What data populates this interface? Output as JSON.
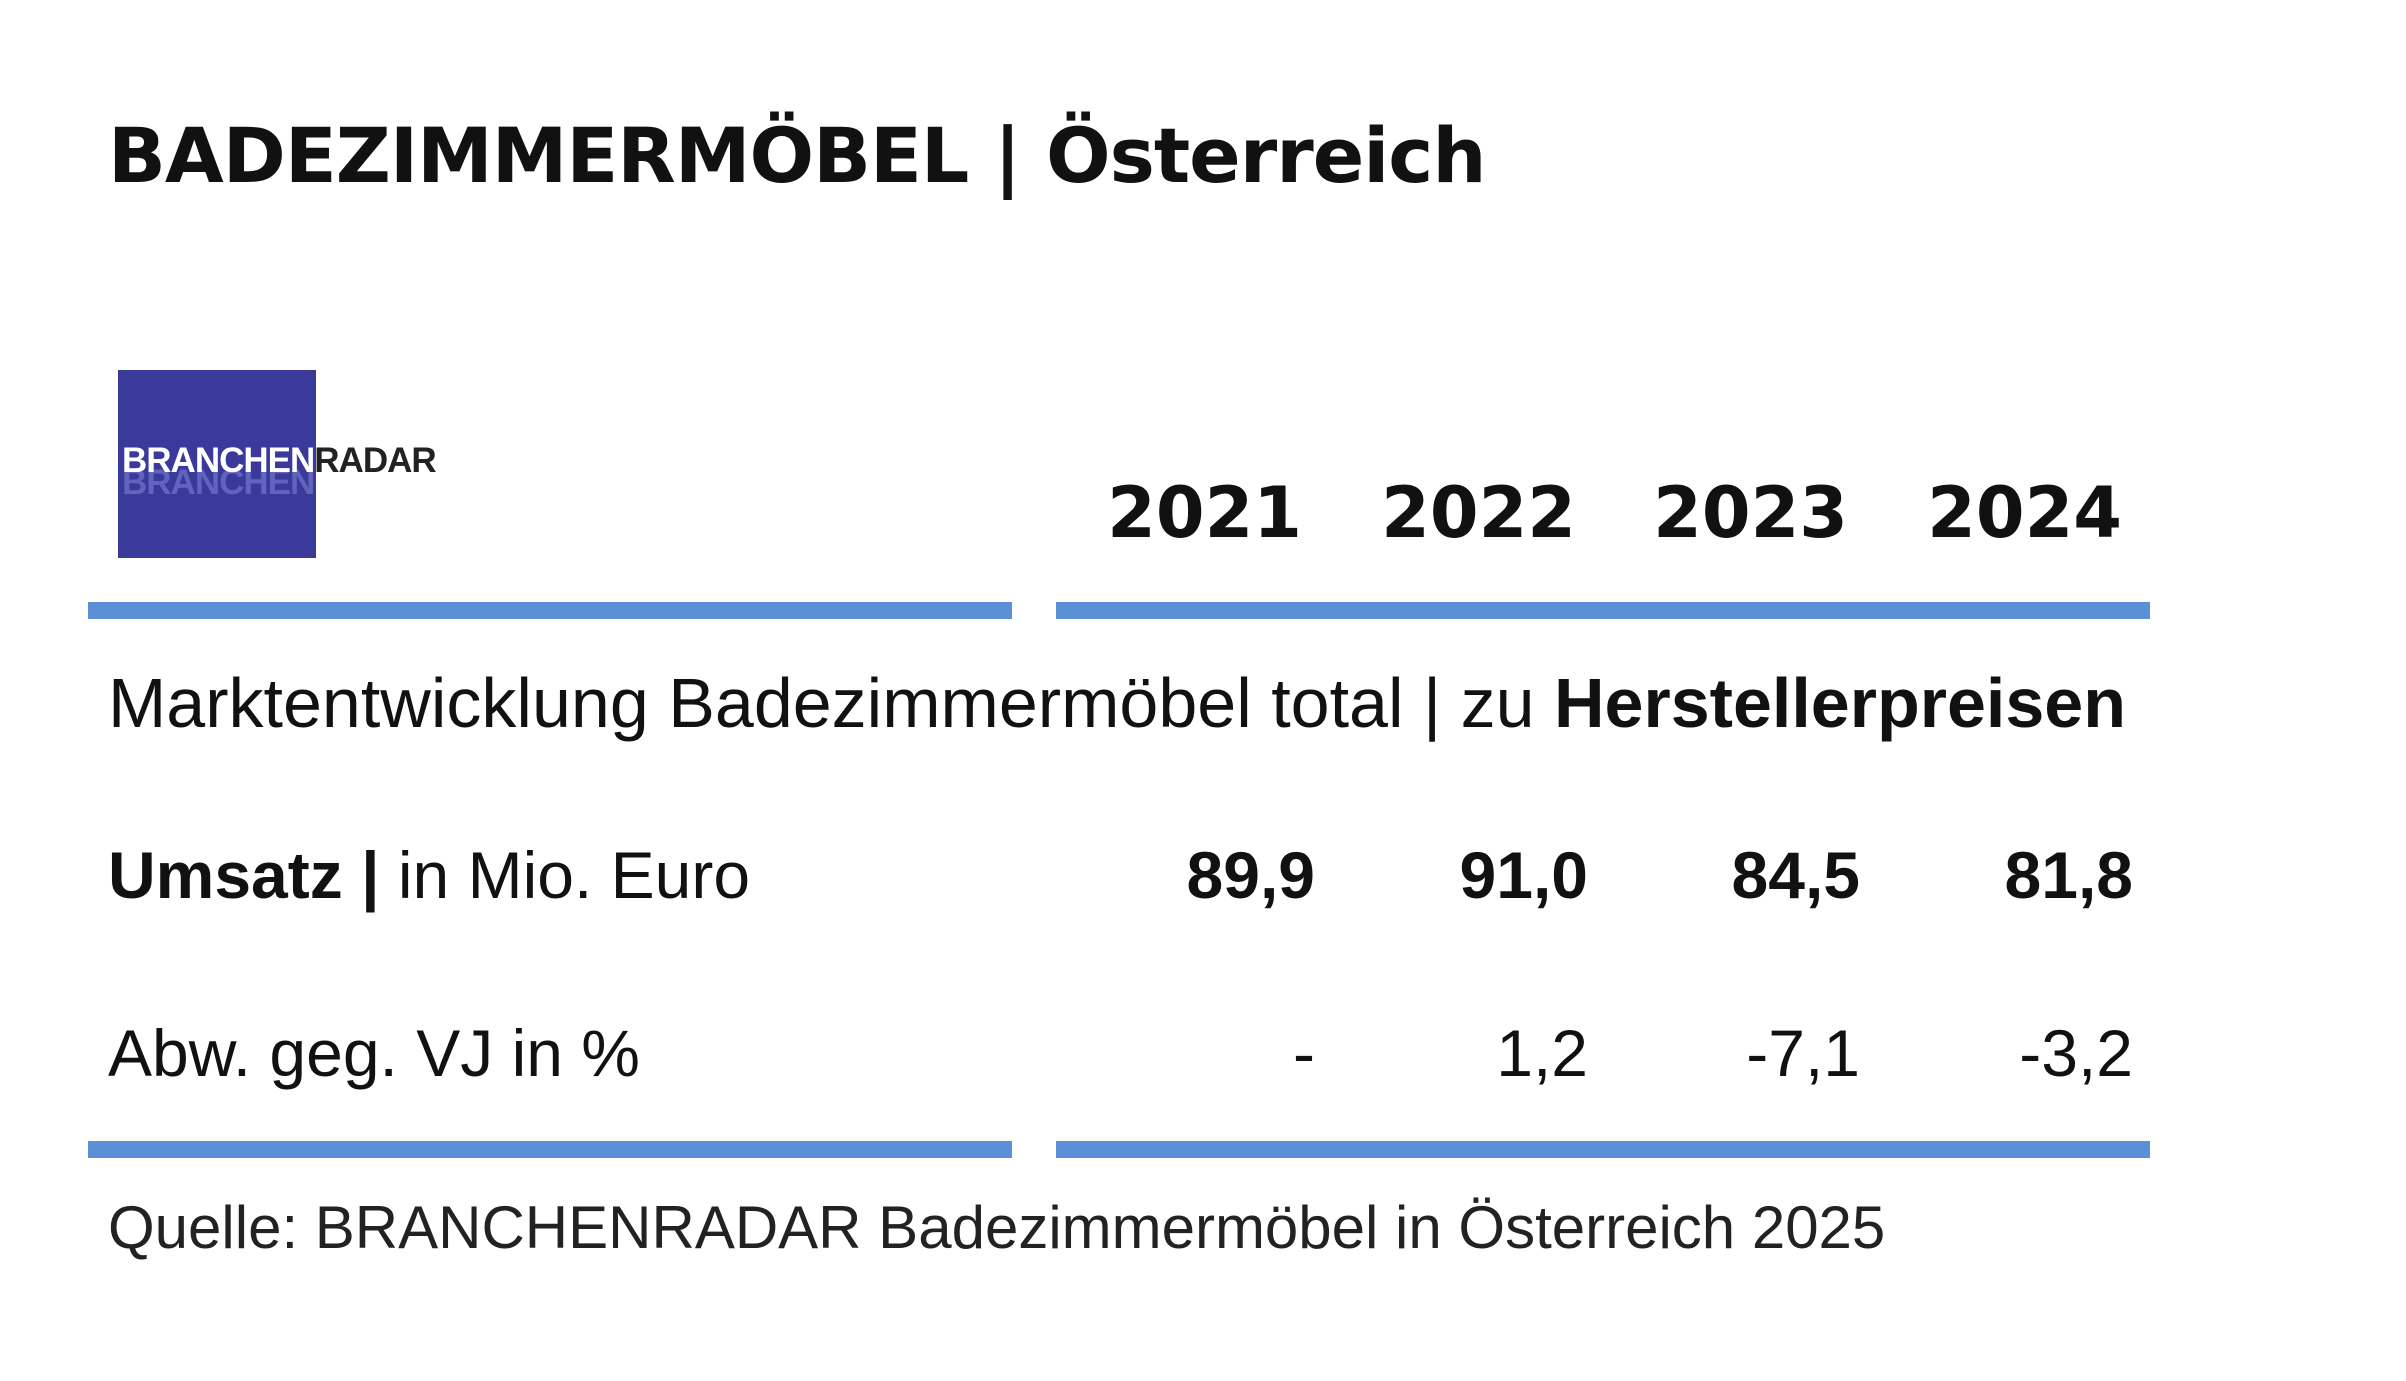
{
  "title": "BADEZIMMERMÖBEL | Österreich",
  "logo": {
    "part1": "BRANCHEN",
    "part2": "RADAR",
    "echo": "BRANCHEN",
    "colors": {
      "box": "#3a3a9a"
    }
  },
  "chart_data": {
    "type": "table",
    "subtitle_plain": "Marktentwicklung Badezimmermöbel total | zu ",
    "subtitle_bold": "Herstellerpreisen",
    "columns": [
      "2021",
      "2022",
      "2023",
      "2024"
    ],
    "rows": [
      {
        "label_bold": "Umsatz |",
        "label_plain": " in Mio. Euro",
        "values": [
          "89,9",
          "91,0",
          "84,5",
          "81,8"
        ]
      },
      {
        "label_bold": "",
        "label_plain": "Abw. geg. VJ in %",
        "values": [
          "-",
          "1,2",
          "-7,1",
          "-3,2"
        ]
      }
    ],
    "source": "Quelle: BRANCHENRADAR Badezimmermöbel in Österreich 2025",
    "colors": {
      "rule": "#5b8fd6"
    }
  }
}
